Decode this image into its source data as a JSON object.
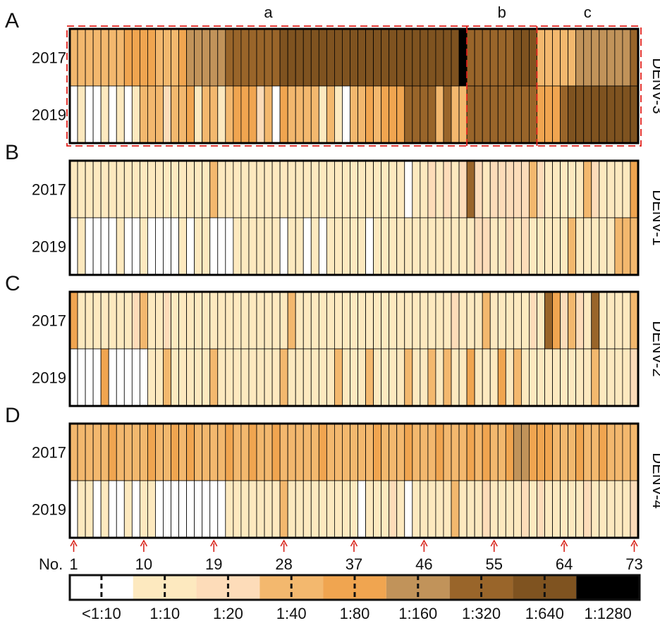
{
  "colors": {
    "levels": [
      "#ffffff",
      "#fde9bf",
      "#fddcb9",
      "#f3b86e",
      "#f0a550",
      "#c1935a",
      "#99652a",
      "#7f5320",
      "#000000"
    ],
    "grid": "#000000",
    "highlight": "#e0201b",
    "arrow": "#d9241b"
  },
  "chart_data": {
    "type": "heatmap",
    "subject_numbers": [
      "1",
      "10",
      "19",
      "28",
      "37",
      "46",
      "55",
      "64",
      "73"
    ],
    "subject_prefix": "No.",
    "n_subjects": 73,
    "legend": [
      "<1:10",
      "1:10",
      "1:20",
      "1:40",
      "1:80",
      "1:160",
      "1:320",
      "1:640",
      "1:1280"
    ],
    "panels": [
      {
        "label": "A",
        "serotype": "DENV-3",
        "years": [
          "2017",
          "2019"
        ],
        "groups": [
          {
            "name": "a",
            "start": 1,
            "end": 51
          },
          {
            "name": "b",
            "start": 52,
            "end": 60
          },
          {
            "name": "c",
            "start": 61,
            "end": 73
          }
        ],
        "values": [
          [
            3,
            3,
            3,
            3,
            3,
            3,
            3,
            4,
            4,
            4,
            4,
            3,
            3,
            3,
            4,
            5,
            5,
            5,
            5,
            5,
            6,
            6,
            6,
            6,
            6,
            6,
            6,
            7,
            7,
            7,
            7,
            7,
            7,
            7,
            7,
            7,
            7,
            7,
            7,
            7,
            7,
            7,
            7,
            7,
            7,
            7,
            7,
            7,
            7,
            7,
            8,
            6,
            6,
            6,
            6,
            6,
            6,
            7,
            7,
            7,
            3,
            3,
            3,
            3,
            3,
            5,
            5,
            5,
            5,
            5,
            5,
            5,
            6
          ],
          [
            0,
            1,
            0,
            0,
            1,
            0,
            1,
            0,
            1,
            3,
            3,
            3,
            2,
            3,
            3,
            4,
            1,
            3,
            3,
            1,
            3,
            4,
            4,
            4,
            2,
            3,
            0,
            4,
            3,
            3,
            3,
            3,
            1,
            3,
            1,
            0,
            3,
            3,
            4,
            3,
            4,
            4,
            4,
            6,
            6,
            6,
            6,
            3,
            6,
            3,
            3,
            6,
            6,
            6,
            6,
            6,
            6,
            6,
            6,
            6,
            4,
            4,
            4,
            6,
            7,
            7,
            7,
            7,
            7,
            7,
            7,
            7,
            7
          ]
        ]
      },
      {
        "label": "B",
        "serotype": "DENV-1",
        "years": [
          "2017",
          "2019"
        ],
        "values": [
          [
            1,
            1,
            1,
            1,
            1,
            1,
            1,
            1,
            1,
            1,
            1,
            1,
            1,
            1,
            1,
            1,
            1,
            1,
            3,
            1,
            1,
            1,
            1,
            1,
            1,
            1,
            1,
            1,
            1,
            1,
            1,
            1,
            1,
            1,
            1,
            1,
            1,
            1,
            1,
            1,
            1,
            1,
            1,
            0,
            1,
            1,
            2,
            1,
            2,
            1,
            2,
            6,
            2,
            1,
            2,
            2,
            2,
            2,
            2,
            3,
            2,
            1,
            1,
            1,
            1,
            1,
            3,
            2,
            1,
            1,
            1,
            1,
            4
          ],
          [
            0,
            1,
            0,
            0,
            0,
            0,
            1,
            0,
            0,
            1,
            0,
            0,
            0,
            0,
            1,
            0,
            1,
            1,
            0,
            0,
            0,
            1,
            1,
            1,
            1,
            1,
            1,
            0,
            1,
            1,
            0,
            1,
            0,
            1,
            1,
            1,
            1,
            1,
            0,
            1,
            1,
            1,
            1,
            1,
            1,
            1,
            1,
            1,
            1,
            1,
            1,
            1,
            2,
            2,
            1,
            1,
            2,
            1,
            2,
            1,
            1,
            1,
            1,
            1,
            3,
            1,
            1,
            1,
            1,
            1,
            3,
            3,
            3
          ]
        ]
      },
      {
        "label": "C",
        "serotype": "DENV-2",
        "years": [
          "2017",
          "2019"
        ],
        "values": [
          [
            4,
            1,
            1,
            1,
            1,
            1,
            1,
            1,
            2,
            3,
            1,
            1,
            2,
            1,
            1,
            1,
            1,
            1,
            1,
            1,
            1,
            1,
            1,
            1,
            1,
            1,
            1,
            1,
            3,
            1,
            1,
            1,
            1,
            1,
            1,
            1,
            1,
            1,
            1,
            1,
            1,
            1,
            1,
            1,
            1,
            1,
            1,
            1,
            1,
            2,
            1,
            1,
            1,
            3,
            1,
            1,
            1,
            1,
            1,
            2,
            1,
            6,
            4,
            2,
            3,
            2,
            1,
            6,
            1,
            1,
            1,
            1,
            3
          ],
          [
            0,
            0,
            0,
            0,
            4,
            0,
            0,
            0,
            0,
            0,
            1,
            1,
            3,
            1,
            1,
            1,
            1,
            1,
            3,
            1,
            1,
            1,
            1,
            1,
            1,
            1,
            1,
            3,
            1,
            1,
            1,
            1,
            1,
            1,
            3,
            1,
            1,
            1,
            3,
            1,
            1,
            1,
            1,
            3,
            1,
            1,
            3,
            1,
            3,
            1,
            1,
            4,
            1,
            1,
            1,
            4,
            1,
            3,
            1,
            1,
            1,
            1,
            1,
            1,
            1,
            1,
            1,
            3,
            1,
            1,
            1,
            1,
            2
          ]
        ]
      },
      {
        "label": "D",
        "serotype": "DENV-4",
        "years": [
          "2017",
          "2019"
        ],
        "values": [
          [
            3,
            3,
            3,
            3,
            3,
            4,
            3,
            3,
            3,
            3,
            4,
            3,
            3,
            4,
            3,
            4,
            3,
            3,
            3,
            3,
            4,
            3,
            3,
            4,
            3,
            3,
            4,
            3,
            3,
            3,
            3,
            3,
            4,
            3,
            3,
            3,
            3,
            3,
            3,
            4,
            3,
            3,
            3,
            4,
            3,
            3,
            3,
            4,
            3,
            3,
            3,
            4,
            3,
            4,
            3,
            3,
            4,
            5,
            5,
            4,
            4,
            4,
            3,
            3,
            3,
            4,
            3,
            3,
            4,
            3,
            3,
            3,
            3
          ],
          [
            0,
            1,
            1,
            0,
            1,
            0,
            0,
            1,
            0,
            1,
            1,
            0,
            0,
            0,
            0,
            0,
            0,
            0,
            0,
            0,
            1,
            1,
            1,
            1,
            1,
            1,
            1,
            3,
            1,
            1,
            1,
            1,
            1,
            1,
            1,
            1,
            1,
            0,
            1,
            1,
            1,
            2,
            1,
            0,
            1,
            1,
            1,
            1,
            1,
            3,
            1,
            1,
            1,
            2,
            1,
            1,
            1,
            1,
            2,
            1,
            2,
            1,
            1,
            1,
            1,
            1,
            2,
            1,
            1,
            1,
            1,
            1,
            2
          ]
        ]
      }
    ]
  }
}
